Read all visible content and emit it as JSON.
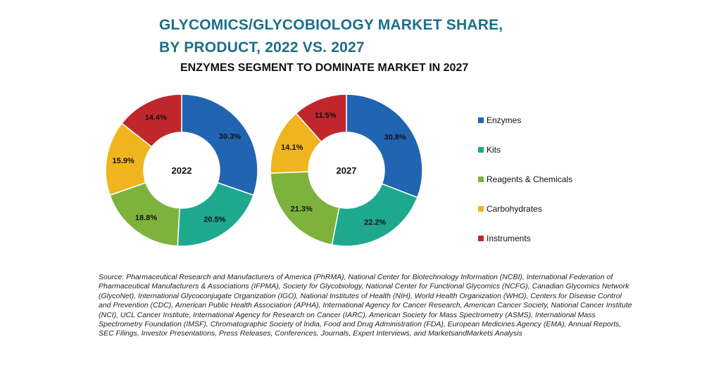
{
  "title_line1": "GLYCOMICS/GLYCOBIOLOGY MARKET SHARE,",
  "title_line2": "BY PRODUCT, 2022 VS. 2027",
  "subtitle": "ENZYMES SEGMENT TO DOMINATE MARKET IN 2027",
  "chart_data": [
    {
      "type": "pie",
      "variant": "donut",
      "center_label": "2022",
      "categories": [
        "Enzymes",
        "Kits",
        "Reagents & Chemicals",
        "Carbohydrates",
        "Instruments"
      ],
      "values": [
        30.3,
        20.5,
        18.8,
        15.9,
        14.4
      ],
      "labels": [
        "30.3%",
        "20.5%",
        "18.8%",
        "15.9%",
        "14.4%"
      ]
    },
    {
      "type": "pie",
      "variant": "donut",
      "center_label": "2027",
      "categories": [
        "Enzymes",
        "Kits",
        "Reagents & Chemicals",
        "Carbohydrates",
        "Instruments"
      ],
      "values": [
        30.8,
        22.2,
        21.3,
        14.1,
        11.5
      ],
      "labels": [
        "30.8%",
        "22.2%",
        "21.3%",
        "14.1%",
        "11.5%"
      ]
    }
  ],
  "colors": [
    "#2164b2",
    "#1ea98f",
    "#7db33d",
    "#f0b51e",
    "#c0272d"
  ],
  "legend": {
    "placement": "right",
    "items": [
      "Enzymes",
      "Kits",
      "Reagents & Chemicals",
      "Carbohydrates",
      "Instruments"
    ]
  },
  "source": "Source: Pharmaceutical Research and Manufacturers of America (PhRMA), National Center for Biotechnology Information (NCBI), International Federation of Pharmaceutical Manufacturers & Associations (IFPMA), Society for Glycobiology, National Center for Functional Glycomics (NCFG), Canadian Glycomics Network (GlycoNet), International Glycoconjugate Organization (IGO), National Institutes of Health (NIH), World Health Organization (WHO), Centers for Disease Control and Prevention (CDC), American Public Health Association (APHA), International Agency for Cancer Research, American Cancer Society, National Cancer Institute (NCI), UCL Cancer Institute, International Agency for Research on Cancer (IARC), American Society for Mass Spectrometry (ASMS), International Mass Spectrometry Foundation (IMSF), Chromatographic Society of India, Food and Drug Administration (FDA), European Medicines Agency (EMA), Annual Reports, SEC Filings, Investor Presentations, Press Releases, Conferences, Journals, Expert Interviews, and MarketsandMarkets Analysis"
}
